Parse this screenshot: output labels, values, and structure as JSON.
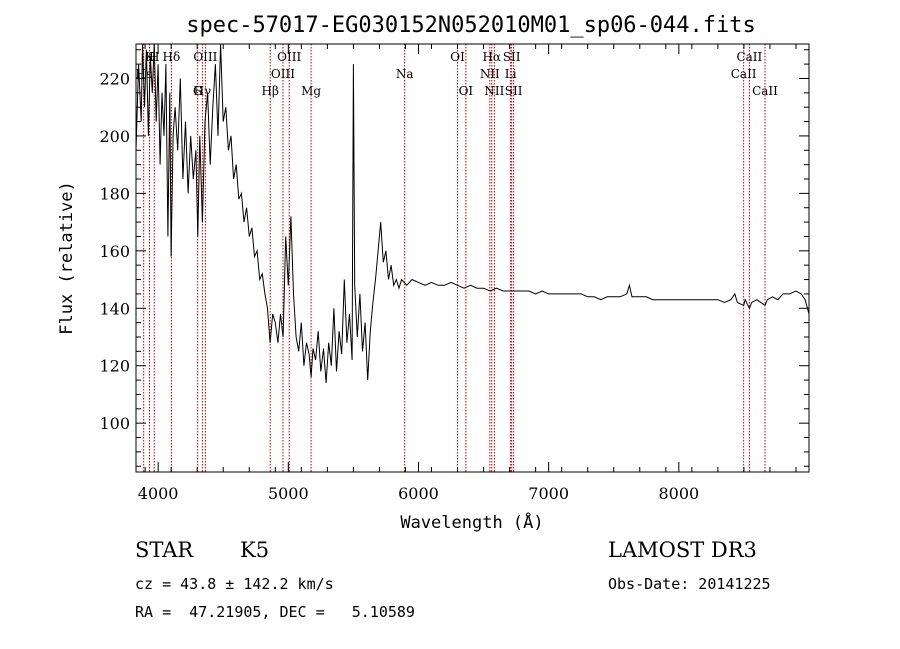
{
  "chart_data": {
    "type": "line",
    "title": "spec-57017-EG030152N052010M01_sp06-044.fits",
    "xlabel": "Wavelength (Å)",
    "ylabel": "Flux (relative)",
    "xlim": [
      3830,
      9000
    ],
    "ylim": [
      83,
      232
    ],
    "xticks": [
      4000,
      5000,
      6000,
      7000,
      8000
    ],
    "yticks": [
      100,
      120,
      140,
      160,
      180,
      200,
      220
    ],
    "grid": false,
    "series": [
      {
        "values": [
          [
            3830,
            195
          ],
          [
            3850,
            225
          ],
          [
            3870,
            205
          ],
          [
            3880,
            232
          ],
          [
            3895,
            210
          ],
          [
            3910,
            230
          ],
          [
            3925,
            200
          ],
          [
            3940,
            228
          ],
          [
            3955,
            215
          ],
          [
            3970,
            232
          ],
          [
            3985,
            205
          ],
          [
            4000,
            225
          ],
          [
            4015,
            190
          ],
          [
            4030,
            215
          ],
          [
            4045,
            200
          ],
          [
            4060,
            225
          ],
          [
            4075,
            165
          ],
          [
            4090,
            215
          ],
          [
            4100,
            158
          ],
          [
            4115,
            200
          ],
          [
            4130,
            210
          ],
          [
            4150,
            195
          ],
          [
            4170,
            220
          ],
          [
            4190,
            185
          ],
          [
            4210,
            205
          ],
          [
            4230,
            180
          ],
          [
            4250,
            200
          ],
          [
            4270,
            185
          ],
          [
            4290,
            195
          ],
          [
            4305,
            165
          ],
          [
            4320,
            200
          ],
          [
            4340,
            170
          ],
          [
            4360,
            205
          ],
          [
            4380,
            215
          ],
          [
            4400,
            190
          ],
          [
            4420,
            210
          ],
          [
            4440,
            225
          ],
          [
            4460,
            200
          ],
          [
            4480,
            232
          ],
          [
            4500,
            205
          ],
          [
            4520,
            210
          ],
          [
            4540,
            195
          ],
          [
            4560,
            200
          ],
          [
            4580,
            185
          ],
          [
            4600,
            190
          ],
          [
            4620,
            178
          ],
          [
            4640,
            180
          ],
          [
            4660,
            170
          ],
          [
            4680,
            175
          ],
          [
            4700,
            165
          ],
          [
            4720,
            168
          ],
          [
            4740,
            158
          ],
          [
            4760,
            160
          ],
          [
            4780,
            150
          ],
          [
            4800,
            152
          ],
          [
            4820,
            145
          ],
          [
            4840,
            140
          ],
          [
            4860,
            128
          ],
          [
            4880,
            138
          ],
          [
            4900,
            135
          ],
          [
            4920,
            128
          ],
          [
            4940,
            138
          ],
          [
            4960,
            130
          ],
          [
            4980,
            165
          ],
          [
            5000,
            148
          ],
          [
            5020,
            172
          ],
          [
            5040,
            145
          ],
          [
            5060,
            130
          ],
          [
            5080,
            125
          ],
          [
            5100,
            135
          ],
          [
            5120,
            120
          ],
          [
            5140,
            128
          ],
          [
            5160,
            124
          ],
          [
            5175,
            116
          ],
          [
            5190,
            126
          ],
          [
            5210,
            122
          ],
          [
            5230,
            132
          ],
          [
            5250,
            118
          ],
          [
            5270,
            126
          ],
          [
            5290,
            114
          ],
          [
            5310,
            128
          ],
          [
            5330,
            120
          ],
          [
            5350,
            140
          ],
          [
            5370,
            118
          ],
          [
            5390,
            132
          ],
          [
            5410,
            124
          ],
          [
            5430,
            150
          ],
          [
            5450,
            128
          ],
          [
            5470,
            138
          ],
          [
            5490,
            122
          ],
          [
            5500,
            225
          ],
          [
            5510,
            148
          ],
          [
            5530,
            130
          ],
          [
            5550,
            145
          ],
          [
            5570,
            125
          ],
          [
            5590,
            135
          ],
          [
            5610,
            115
          ],
          [
            5630,
            132
          ],
          [
            5650,
            142
          ],
          [
            5670,
            150
          ],
          [
            5690,
            160
          ],
          [
            5710,
            170
          ],
          [
            5730,
            156
          ],
          [
            5750,
            160
          ],
          [
            5770,
            150
          ],
          [
            5790,
            155
          ],
          [
            5810,
            148
          ],
          [
            5830,
            150
          ],
          [
            5850,
            147
          ],
          [
            5870,
            150
          ],
          [
            5890,
            149
          ],
          [
            5910,
            148
          ],
          [
            5950,
            150
          ],
          [
            6000,
            149
          ],
          [
            6050,
            148
          ],
          [
            6100,
            149
          ],
          [
            6150,
            148
          ],
          [
            6200,
            148
          ],
          [
            6250,
            149
          ],
          [
            6300,
            148
          ],
          [
            6350,
            147
          ],
          [
            6400,
            148
          ],
          [
            6450,
            147
          ],
          [
            6500,
            147
          ],
          [
            6550,
            146
          ],
          [
            6600,
            147
          ],
          [
            6650,
            146
          ],
          [
            6700,
            146
          ],
          [
            6750,
            146
          ],
          [
            6800,
            146
          ],
          [
            6850,
            146
          ],
          [
            6900,
            145
          ],
          [
            6950,
            146
          ],
          [
            7000,
            145
          ],
          [
            7050,
            145
          ],
          [
            7100,
            145
          ],
          [
            7150,
            145
          ],
          [
            7200,
            145
          ],
          [
            7250,
            145
          ],
          [
            7300,
            144
          ],
          [
            7350,
            144
          ],
          [
            7400,
            143
          ],
          [
            7450,
            144
          ],
          [
            7500,
            144
          ],
          [
            7550,
            144
          ],
          [
            7600,
            145
          ],
          [
            7620,
            148
          ],
          [
            7640,
            144
          ],
          [
            7700,
            144
          ],
          [
            7750,
            144
          ],
          [
            7800,
            143
          ],
          [
            7850,
            143
          ],
          [
            7900,
            143
          ],
          [
            7950,
            143
          ],
          [
            8000,
            143
          ],
          [
            8050,
            143
          ],
          [
            8100,
            143
          ],
          [
            8150,
            143
          ],
          [
            8200,
            143
          ],
          [
            8250,
            143
          ],
          [
            8300,
            143
          ],
          [
            8350,
            142
          ],
          [
            8400,
            143
          ],
          [
            8430,
            145
          ],
          [
            8450,
            142
          ],
          [
            8498,
            141
          ],
          [
            8510,
            143
          ],
          [
            8542,
            140
          ],
          [
            8560,
            142
          ],
          [
            8600,
            143
          ],
          [
            8662,
            141
          ],
          [
            8680,
            143
          ],
          [
            8720,
            144
          ],
          [
            8760,
            143
          ],
          [
            8800,
            145
          ],
          [
            8850,
            145
          ],
          [
            8900,
            146
          ],
          [
            8940,
            145
          ],
          [
            8970,
            143
          ],
          [
            9000,
            138
          ]
        ]
      }
    ],
    "lines": [
      {
        "wl": 3889,
        "label": "Hε",
        "row": 1
      },
      {
        "wl": 3934,
        "label": "K",
        "row": 0
      },
      {
        "wl": 3970,
        "label": "H",
        "row": 0
      },
      {
        "wl": 4102,
        "label": "Hδ",
        "row": 0
      },
      {
        "wl": 4304,
        "label": "G",
        "row": 2
      },
      {
        "wl": 4340,
        "label": "Hγ",
        "row": 2
      },
      {
        "wl": 4363,
        "label": "OIII",
        "row": 0
      },
      {
        "wl": 4861,
        "label": "Hβ",
        "row": 2
      },
      {
        "wl": 4959,
        "label": "OIII",
        "row": 1
      },
      {
        "wl": 5007,
        "label": "OIII",
        "row": 0
      },
      {
        "wl": 5175,
        "label": "Mg",
        "row": 2
      },
      {
        "wl": 5894,
        "label": "Na",
        "row": 1
      },
      {
        "wl": 6300,
        "label": "OI",
        "row": 0
      },
      {
        "wl": 6364,
        "label": "OI",
        "row": 2
      },
      {
        "wl": 6548,
        "label": "NII",
        "row": 1
      },
      {
        "wl": 6563,
        "label": "Hα",
        "row": 0
      },
      {
        "wl": 6583,
        "label": "NII",
        "row": 2
      },
      {
        "wl": 6708,
        "label": "Li",
        "row": 1
      },
      {
        "wl": 6716,
        "label": "SII",
        "row": 0
      },
      {
        "wl": 6731,
        "label": "SII",
        "row": 2
      },
      {
        "wl": 8498,
        "label": "CaII",
        "row": 1
      },
      {
        "wl": 8542,
        "label": "CaII",
        "row": 0
      },
      {
        "wl": 8662,
        "label": "CaII",
        "row": 2
      }
    ],
    "colors": {
      "spectrum": "#000000",
      "lines": "#c00000"
    }
  },
  "info": {
    "object_class": "STAR",
    "subclass": "K5",
    "survey": "LAMOST DR3",
    "redshift": "cz = 43.8 ± 142.2 km/s",
    "obs_date": "Obs-Date: 20141225",
    "coords": "RA =  47.21905, DEC =   5.10589"
  }
}
